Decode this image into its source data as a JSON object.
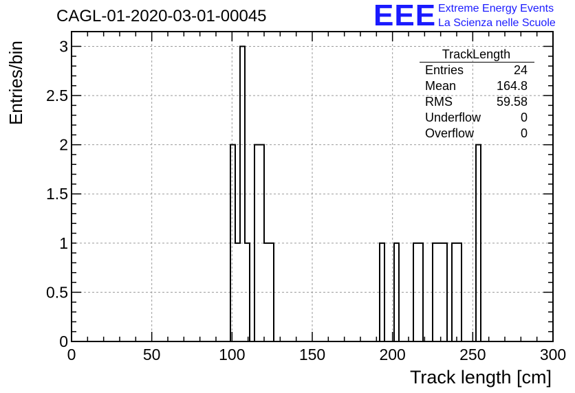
{
  "chart_data": {
    "type": "histogram",
    "title": "CAGL-01-2020-03-01-00045",
    "xlabel": "Track length [cm]",
    "ylabel": "Entries/bin",
    "xlim": [
      0,
      300
    ],
    "ylim": [
      0,
      3.15
    ],
    "grid": true,
    "bin_width": 3,
    "xticks": [
      0,
      50,
      100,
      150,
      200,
      250,
      300
    ],
    "yticks": [
      0,
      0.5,
      1,
      1.5,
      2,
      2.5,
      3
    ],
    "bins": [
      {
        "x": 99,
        "count": 2
      },
      {
        "x": 102,
        "count": 1
      },
      {
        "x": 105,
        "count": 3
      },
      {
        "x": 108,
        "count": 1
      },
      {
        "x": 114,
        "count": 2
      },
      {
        "x": 117,
        "count": 2
      },
      {
        "x": 120,
        "count": 1
      },
      {
        "x": 123,
        "count": 1
      },
      {
        "x": 192,
        "count": 1
      },
      {
        "x": 201,
        "count": 1
      },
      {
        "x": 213,
        "count": 1
      },
      {
        "x": 216,
        "count": 1
      },
      {
        "x": 225,
        "count": 1
      },
      {
        "x": 228,
        "count": 1
      },
      {
        "x": 231,
        "count": 1
      },
      {
        "x": 237,
        "count": 1
      },
      {
        "x": 240,
        "count": 1
      },
      {
        "x": 252,
        "count": 2
      }
    ],
    "stats_box": {
      "title": "TrackLength",
      "rows": [
        {
          "label": "Entries",
          "value": "24"
        },
        {
          "label": "Mean",
          "value": "164.8"
        },
        {
          "label": "RMS",
          "value": "59.58"
        },
        {
          "label": "Underflow",
          "value": "0"
        },
        {
          "label": "Overflow",
          "value": "0"
        }
      ]
    }
  },
  "logo": {
    "mark": "EEE",
    "line1": "Extreme Energy Events",
    "line2": "La Scienza nelle Scuole",
    "color": "#1a1aff"
  }
}
